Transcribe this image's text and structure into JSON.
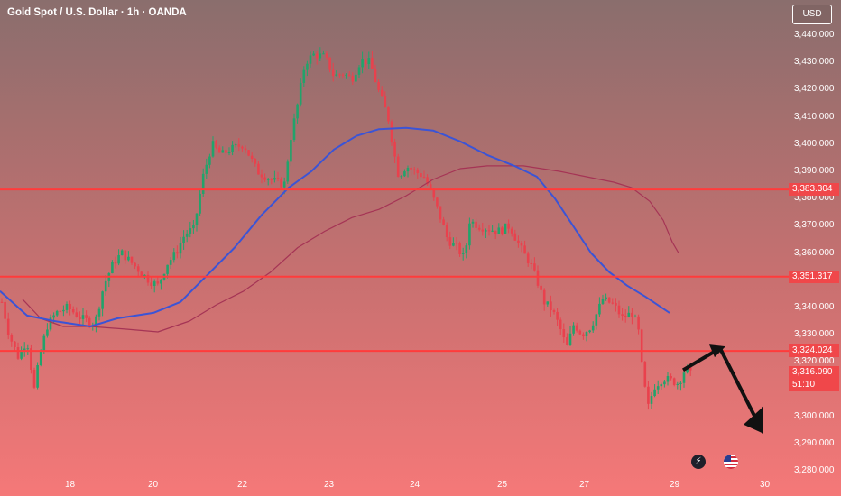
{
  "header": {
    "symbol_title": "Gold Spot / U.S. Dollar · 1h · OANDA",
    "currency_button": "USD"
  },
  "colors": {
    "background_top": "#8a6e6d",
    "background_bottom": "#f57878",
    "bull_candle": "#22a36b",
    "bear_candle": "#e9414d",
    "fast_ma": "#3b54d6",
    "slow_ma": "#a53455",
    "level_line": "#ff3b3b",
    "price_tag": "#f0474a",
    "arrow": "#111111"
  },
  "icons": {
    "event_flash": "lightning-icon",
    "event_flag": "us-flag-icon"
  },
  "chart_data": {
    "type": "candlestick",
    "title": "Gold Spot / U.S. Dollar · 1h · OANDA",
    "y_axis": {
      "ticks": [
        "3,440.000",
        "3,430.000",
        "3,420.000",
        "3,410.000",
        "3,400.000",
        "3,390.000",
        "3,380.000",
        "3,370.000",
        "3,360.000",
        "3,340.000",
        "3,330.000",
        "3,320.000",
        "3,300.000",
        "3,290.000",
        "3,280.000"
      ],
      "range": [
        3279,
        3443
      ]
    },
    "x_axis": {
      "ticks": [
        "18",
        "20",
        "22",
        "23",
        "24",
        "25",
        "27",
        "29",
        "30"
      ]
    },
    "levels": [
      {
        "label": "3,383.304",
        "value": 3383.304
      },
      {
        "label": "3,351.317",
        "value": 3351.317
      },
      {
        "label": "3,324.024",
        "value": 3324.024
      }
    ],
    "last_price": {
      "label": "3,316.090",
      "value": 3316.09,
      "countdown": "51:10"
    },
    "price_path": [
      [
        0,
        3345
      ],
      [
        10,
        3330
      ],
      [
        20,
        3322
      ],
      [
        30,
        3328
      ],
      [
        38,
        3310
      ],
      [
        44,
        3322
      ],
      [
        52,
        3333
      ],
      [
        62,
        3338
      ],
      [
        75,
        3340
      ],
      [
        90,
        3336
      ],
      [
        105,
        3334
      ],
      [
        115,
        3348
      ],
      [
        125,
        3356
      ],
      [
        135,
        3360
      ],
      [
        150,
        3355
      ],
      [
        165,
        3350
      ],
      [
        175,
        3348
      ],
      [
        185,
        3356
      ],
      [
        195,
        3360
      ],
      [
        205,
        3367
      ],
      [
        215,
        3369
      ],
      [
        225,
        3388
      ],
      [
        235,
        3400
      ],
      [
        245,
        3396
      ],
      [
        255,
        3398
      ],
      [
        270,
        3400
      ],
      [
        285,
        3390
      ],
      [
        300,
        3387
      ],
      [
        315,
        3385
      ],
      [
        322,
        3402
      ],
      [
        330,
        3415
      ],
      [
        338,
        3430
      ],
      [
        348,
        3433
      ],
      [
        360,
        3432
      ],
      [
        370,
        3425
      ],
      [
        380,
        3426
      ],
      [
        390,
        3424
      ],
      [
        400,
        3431
      ],
      [
        410,
        3430
      ],
      [
        420,
        3419
      ],
      [
        430,
        3410
      ],
      [
        436,
        3398
      ],
      [
        442,
        3388
      ],
      [
        450,
        3392
      ],
      [
        460,
        3390
      ],
      [
        470,
        3388
      ],
      [
        478,
        3382
      ],
      [
        486,
        3375
      ],
      [
        496,
        3365
      ],
      [
        506,
        3362
      ],
      [
        515,
        3358
      ],
      [
        520,
        3372
      ],
      [
        530,
        3370
      ],
      [
        540,
        3369
      ],
      [
        552,
        3368
      ],
      [
        565,
        3370
      ],
      [
        572,
        3365
      ],
      [
        580,
        3360
      ],
      [
        588,
        3356
      ],
      [
        596,
        3349
      ],
      [
        603,
        3342
      ],
      [
        612,
        3339
      ],
      [
        620,
        3333
      ],
      [
        628,
        3325
      ],
      [
        636,
        3334
      ],
      [
        645,
        3330
      ],
      [
        655,
        3333
      ],
      [
        668,
        3343
      ],
      [
        680,
        3341
      ],
      [
        690,
        3336
      ],
      [
        700,
        3338
      ],
      [
        707,
        3333
      ],
      [
        712,
        3316
      ],
      [
        718,
        3303
      ],
      [
        725,
        3311
      ],
      [
        735,
        3314
      ],
      [
        745,
        3313
      ],
      [
        752,
        3312
      ],
      [
        760,
        3318
      ],
      [
        768,
        3314
      ]
    ],
    "fast_ma": [
      [
        0,
        3346
      ],
      [
        30,
        3337
      ],
      [
        60,
        3335
      ],
      [
        100,
        3333
      ],
      [
        130,
        3336
      ],
      [
        170,
        3338
      ],
      [
        200,
        3342
      ],
      [
        230,
        3352
      ],
      [
        260,
        3362
      ],
      [
        290,
        3374
      ],
      [
        320,
        3384
      ],
      [
        345,
        3390
      ],
      [
        370,
        3398
      ],
      [
        395,
        3403
      ],
      [
        420,
        3405.5
      ],
      [
        450,
        3406
      ],
      [
        480,
        3405
      ],
      [
        510,
        3401
      ],
      [
        540,
        3396
      ],
      [
        570,
        3392
      ],
      [
        595,
        3388
      ],
      [
        615,
        3380
      ],
      [
        635,
        3370
      ],
      [
        655,
        3360
      ],
      [
        675,
        3353
      ],
      [
        695,
        3348
      ],
      [
        715,
        3344
      ],
      [
        742,
        3338
      ]
    ],
    "slow_ma": [
      [
        25,
        3343
      ],
      [
        45,
        3336
      ],
      [
        70,
        3333
      ],
      [
        100,
        3333
      ],
      [
        140,
        3332
      ],
      [
        175,
        3331
      ],
      [
        210,
        3335
      ],
      [
        240,
        3341
      ],
      [
        270,
        3346
      ],
      [
        300,
        3353
      ],
      [
        330,
        3362
      ],
      [
        360,
        3368
      ],
      [
        390,
        3373
      ],
      [
        420,
        3376
      ],
      [
        450,
        3381
      ],
      [
        480,
        3387
      ],
      [
        510,
        3391
      ],
      [
        540,
        3392
      ],
      [
        580,
        3392
      ],
      [
        620,
        3390
      ],
      [
        650,
        3388
      ],
      [
        680,
        3386
      ],
      [
        700,
        3384
      ],
      [
        720,
        3379
      ],
      [
        735,
        3372
      ],
      [
        745,
        3364
      ],
      [
        752,
        3360
      ]
    ],
    "annotation_arrow": {
      "description": "projected move",
      "path": [
        [
          757,
          3317
        ],
        [
          798,
          3325
        ],
        [
          844,
          3295
        ]
      ]
    },
    "grid": false,
    "legend": "none"
  }
}
